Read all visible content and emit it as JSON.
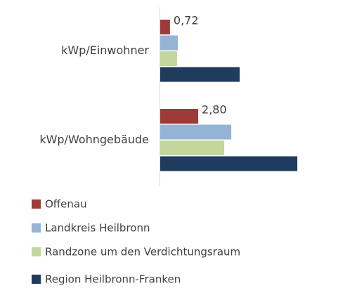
{
  "chart_data": {
    "type": "bar",
    "orientation": "horizontal",
    "categories": [
      "kWp/Einwohner",
      "kWp/Wohngebäude"
    ],
    "series": [
      {
        "name": "Offenau",
        "color": "#9e3a38",
        "values": [
          0.72,
          2.8
        ],
        "value_labels": [
          "0,72",
          "2,80"
        ]
      },
      {
        "name": "Landkreis Heilbronn",
        "color": "#95b3d7",
        "values": [
          1.3,
          5.24
        ]
      },
      {
        "name": "Randzone um den Verdichtungsraum",
        "color": "#c3d69b",
        "values": [
          1.24,
          4.72
        ]
      },
      {
        "name": "Region Heilbronn-Franken",
        "color": "#1f3b5e",
        "values": [
          5.86,
          10.11
        ]
      }
    ],
    "legend": "bottom"
  }
}
